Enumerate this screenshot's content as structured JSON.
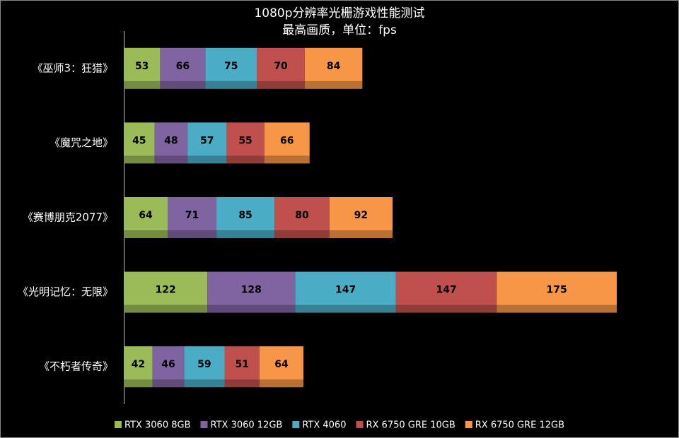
{
  "chart_data": {
    "type": "stacked-bar-horizontal",
    "title": "1080p分辨率光栅游戏性能测试",
    "subtitle": "最高画质，单位：fps",
    "categories": [
      "《巫师3：狂猎》",
      "《魔咒之地》",
      "《赛博朋克2077》",
      "《光明记忆：无限》",
      "《不朽者传奇》"
    ],
    "series": [
      {
        "name": "RTX 3060 8GB",
        "color": "#9bbb59",
        "values": [
          53,
          45,
          64,
          122,
          42
        ]
      },
      {
        "name": "RTX 3060 12GB",
        "color": "#8064a2",
        "values": [
          66,
          48,
          71,
          128,
          46
        ]
      },
      {
        "name": "RTX 4060",
        "color": "#4bacc6",
        "values": [
          75,
          57,
          85,
          147,
          59
        ]
      },
      {
        "name": "RX 6750 GRE 10GB",
        "color": "#c0504d",
        "values": [
          70,
          55,
          80,
          147,
          51
        ]
      },
      {
        "name": "RX 6750 GRE 12GB",
        "color": "#f79646",
        "values": [
          84,
          66,
          92,
          175,
          64
        ]
      }
    ],
    "legend": "bottom"
  }
}
